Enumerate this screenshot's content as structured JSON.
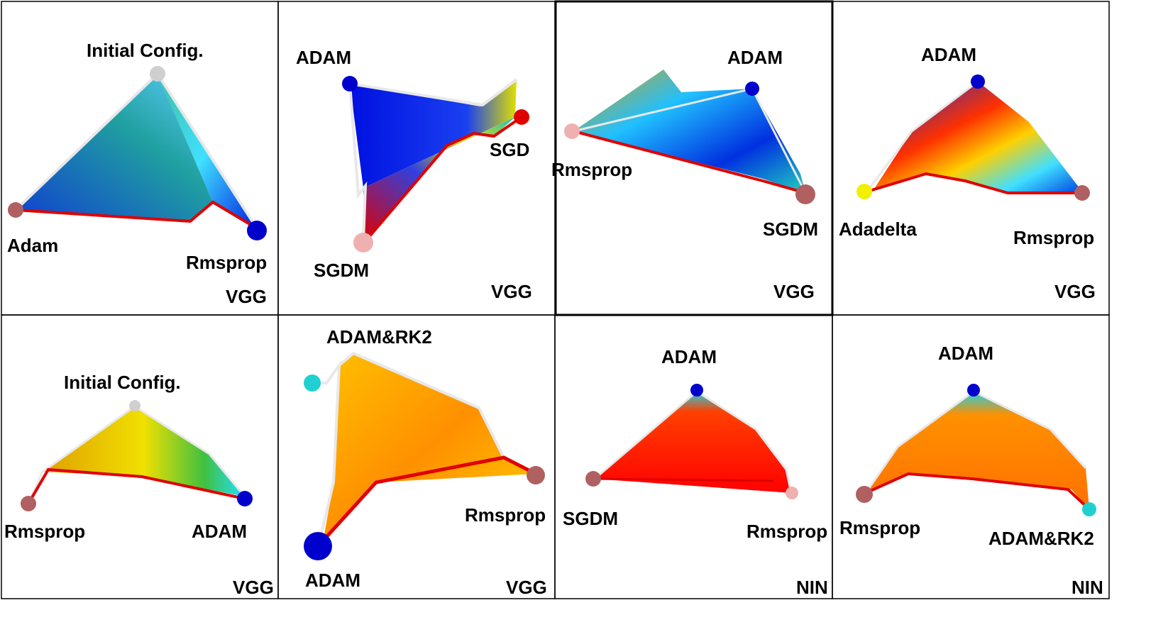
{
  "panels": [
    {
      "network": "VGG",
      "labels": [
        "Initial Config.",
        "Adam",
        "Rmsprop"
      ],
      "vertex_colors": [
        "#cfcfcf",
        "#b06060",
        "#0000cc"
      ],
      "dominant_colors": [
        "#0040e0",
        "#20a0a0",
        "#40c0ff"
      ]
    },
    {
      "network": "VGG",
      "labels": [
        "ADAM",
        "SGD",
        "SGDM"
      ],
      "vertex_colors": [
        "#0000cc",
        "#e00000",
        "#f0b0b0"
      ],
      "dominant_colors": [
        "#0020e0",
        "#e0e000",
        "#e00000"
      ]
    },
    {
      "network": "VGG",
      "labels": [
        "ADAM",
        "Rmsprop",
        "SGDM"
      ],
      "vertex_colors": [
        "#0000cc",
        "#f0b0b0",
        "#b06060"
      ],
      "dominant_colors": [
        "#0030e0",
        "#20c0ff",
        "#ffd000"
      ]
    },
    {
      "network": "VGG",
      "labels": [
        "ADAM",
        "Adadelta",
        "Rmsprop"
      ],
      "vertex_colors": [
        "#0000cc",
        "#f0f000",
        "#b06060"
      ],
      "dominant_colors": [
        "#0030e0",
        "#ff3000",
        "#40e0ff"
      ]
    },
    {
      "network": "VGG",
      "labels": [
        "Initial Config.",
        "Rmsprop",
        "ADAM"
      ],
      "vertex_colors": [
        "#cfcfcf",
        "#b06060",
        "#0000cc"
      ],
      "dominant_colors": [
        "#f0e000",
        "#d0e000",
        "#20d0e0"
      ]
    },
    {
      "network": "VGG",
      "labels": [
        "ADAM&RK2",
        "Rmsprop",
        "ADAM"
      ],
      "vertex_colors": [
        "#20d0d0",
        "#b06060",
        "#0000cc"
      ],
      "dominant_colors": [
        "#ffc000",
        "#ff9000",
        "#ffd000"
      ]
    },
    {
      "network": "NIN",
      "labels": [
        "ADAM",
        "SGDM",
        "Rmsprop"
      ],
      "vertex_colors": [
        "#0000cc",
        "#b06060",
        "#f0b0b0"
      ],
      "dominant_colors": [
        "#ff1000",
        "#ff4000",
        "#20d0e0"
      ]
    },
    {
      "network": "NIN",
      "labels": [
        "ADAM",
        "Rmsprop",
        "ADAM&RK2"
      ],
      "vertex_colors": [
        "#0000cc",
        "#b06060",
        "#20d0d0"
      ],
      "dominant_colors": [
        "#ff9000",
        "#ff7000",
        "#20d0e0"
      ]
    }
  ]
}
